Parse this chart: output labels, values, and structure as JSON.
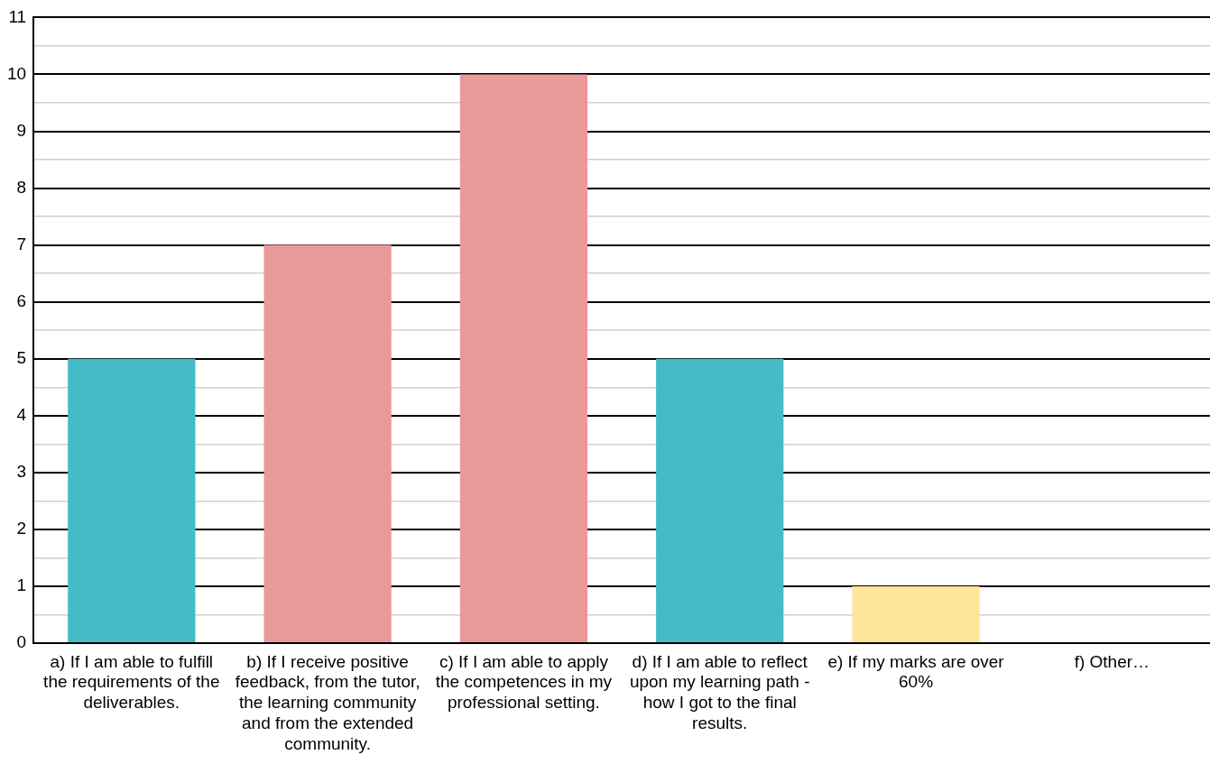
{
  "chart_data": {
    "type": "bar",
    "categories": [
      "a) If I am able to fulfill the requirements of the deliverables.",
      "b) If I receive positive feedback, from the tutor, the learning community and from the extended community.",
      "c) If I am able to apply the competences in my professional setting.",
      "d) If I am able to reflect upon my learning path - how I got to the final results.",
      "e) If my marks are over 60%",
      "f) Other…"
    ],
    "values": [
      5,
      7,
      10,
      5,
      1,
      0
    ],
    "colors": [
      "#45bbc7",
      "#ea9999",
      "#ea9999",
      "#45bbc7",
      "#ffe599",
      "#45bbc7"
    ],
    "ylim": [
      0,
      11
    ],
    "yticks": [
      0,
      {
        "value": 0.5,
        "label": null
      },
      1,
      {
        "value": 1.5,
        "label": null
      },
      2,
      {
        "value": 2.5,
        "label": null
      },
      3,
      {
        "value": 3.5,
        "label": null
      },
      4,
      {
        "value": 4.5,
        "label": null
      },
      5,
      {
        "value": 5.5,
        "label": null
      },
      6,
      {
        "value": 6.5,
        "label": null
      },
      7,
      {
        "value": 7.5,
        "label": null
      },
      8,
      {
        "value": 8.5,
        "label": null
      },
      9,
      {
        "value": 9.5,
        "label": null
      },
      10,
      {
        "value": 10.5,
        "label": null
      },
      11
    ],
    "grid": "y",
    "legend": false
  }
}
